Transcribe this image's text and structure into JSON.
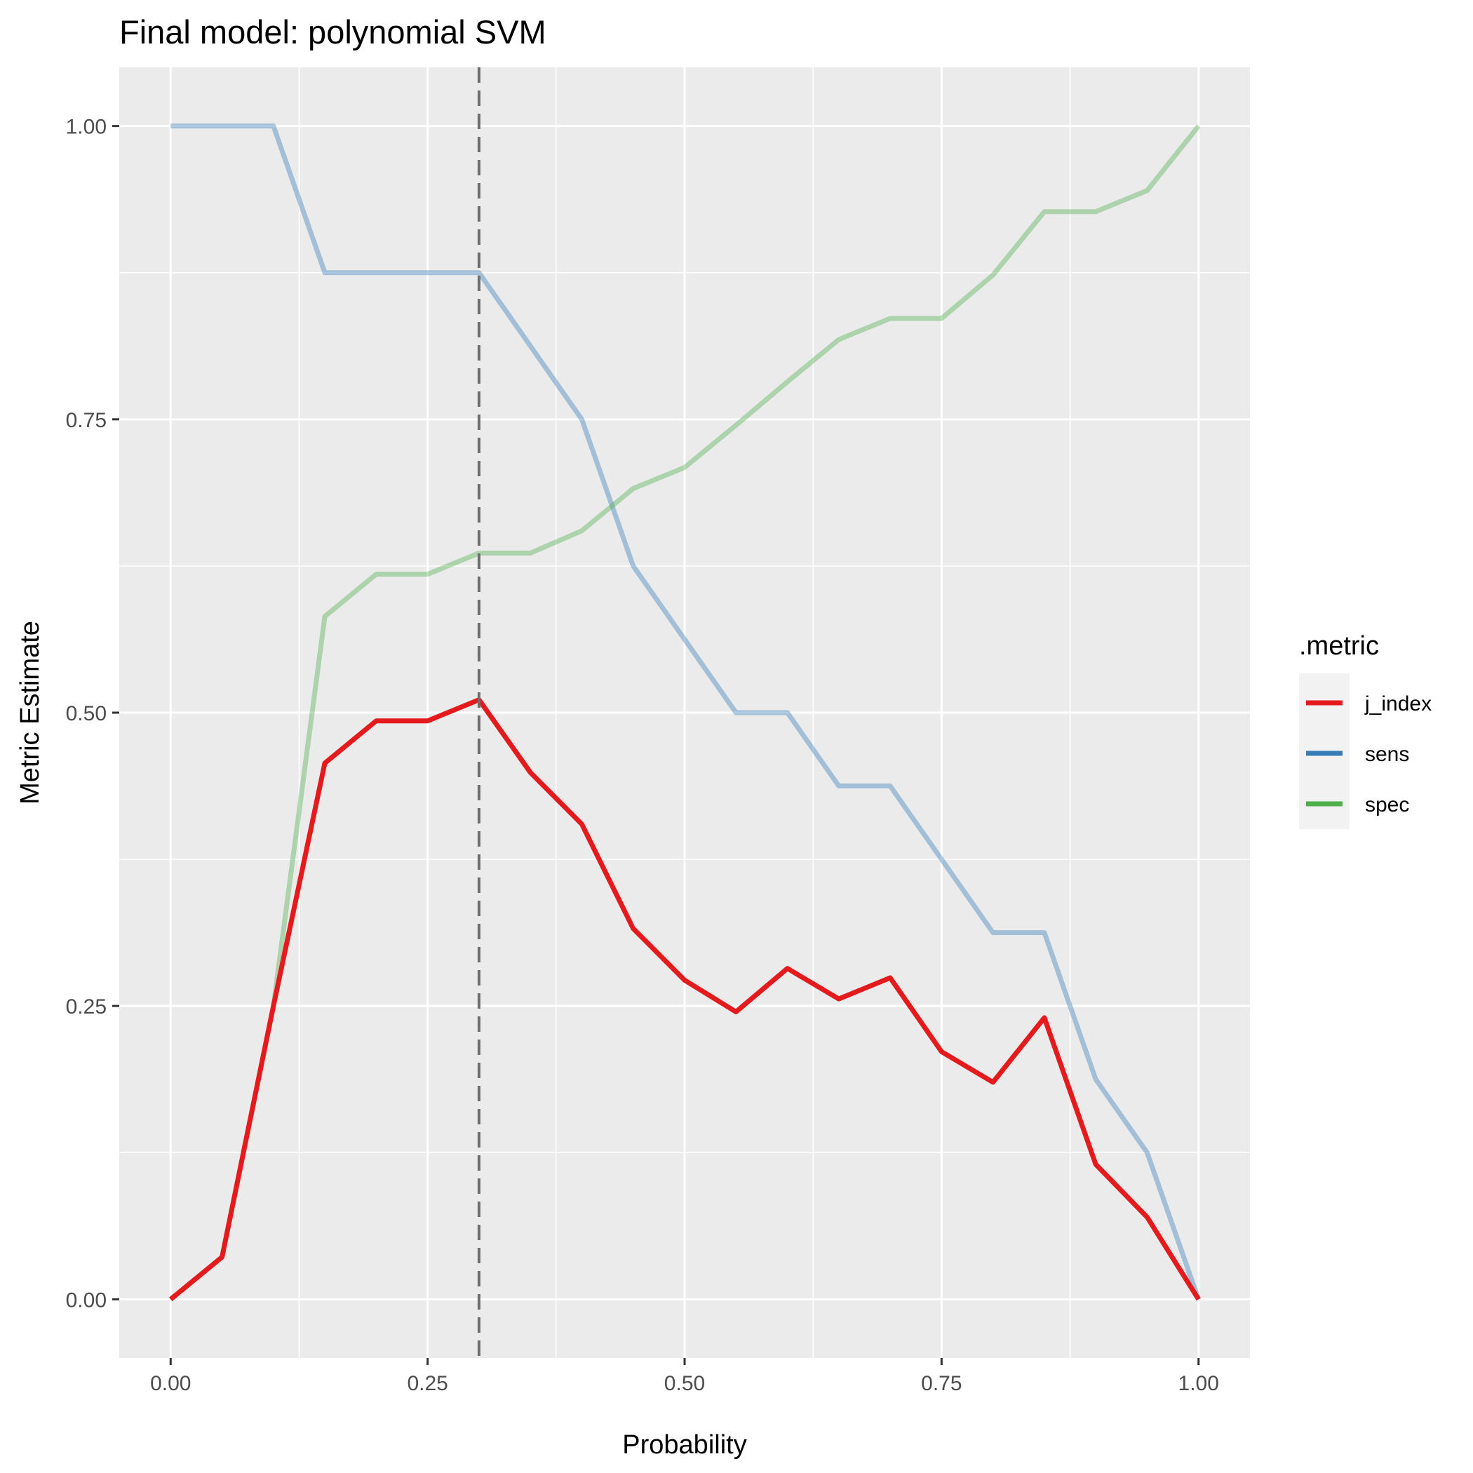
{
  "chart_data": {
    "type": "line",
    "title": "Final model: polynomial SVM",
    "xlabel": "Probability",
    "ylabel": "Metric Estimate",
    "xlim": [
      -0.05,
      1.05
    ],
    "ylim": [
      -0.05,
      1.05
    ],
    "x_ticks": [
      0.0,
      0.25,
      0.5,
      0.75,
      1.0
    ],
    "x_tick_labels": [
      "0.00",
      "0.25",
      "0.50",
      "0.75",
      "1.00"
    ],
    "y_ticks": [
      0.0,
      0.25,
      0.5,
      0.75,
      1.0
    ],
    "y_tick_labels": [
      "0.00",
      "0.25",
      "0.50",
      "0.75",
      "1.00"
    ],
    "grid": true,
    "legend_title": ".metric",
    "legend_position": "right",
    "threshold_line": {
      "x": 0.3,
      "style": "dashed",
      "color": "#6e6e6e"
    },
    "x": [
      0.0,
      0.05,
      0.1,
      0.15,
      0.2,
      0.25,
      0.3,
      0.35,
      0.4,
      0.45,
      0.5,
      0.55,
      0.6,
      0.65,
      0.7,
      0.75,
      0.8,
      0.85,
      0.9,
      0.95,
      1.0
    ],
    "series": [
      {
        "name": "sens",
        "color": "#377eb8",
        "opacity": 0.4,
        "values": [
          1.0,
          1.0,
          1.0,
          0.875,
          0.875,
          0.875,
          0.875,
          0.8125,
          0.75,
          0.625,
          0.5625,
          0.5,
          0.5,
          0.4375,
          0.4375,
          0.375,
          0.3125,
          0.3125,
          0.1875,
          0.125,
          0.0
        ]
      },
      {
        "name": "spec",
        "color": "#4daf4a",
        "opacity": 0.4,
        "values": [
          0.0,
          0.036,
          0.25,
          0.582,
          0.618,
          0.618,
          0.636,
          0.636,
          0.655,
          0.691,
          0.709,
          0.745,
          0.782,
          0.818,
          0.836,
          0.836,
          0.873,
          0.927,
          0.927,
          0.945,
          1.0
        ]
      },
      {
        "name": "j_index",
        "color": "#e41a1c",
        "opacity": 1.0,
        "values": [
          0.0,
          0.036,
          0.25,
          0.457,
          0.493,
          0.493,
          0.511,
          0.449,
          0.405,
          0.316,
          0.272,
          0.245,
          0.282,
          0.256,
          0.274,
          0.211,
          0.185,
          0.24,
          0.115,
          0.07,
          0.0
        ]
      }
    ],
    "legend_order": [
      "j_index",
      "sens",
      "spec"
    ]
  }
}
